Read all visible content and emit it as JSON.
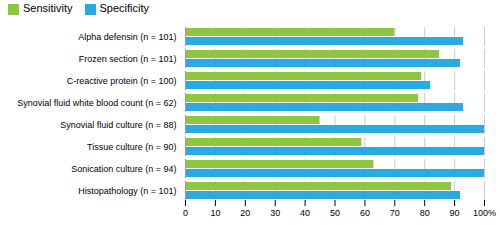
{
  "chart_data": {
    "type": "bar",
    "orientation": "horizontal",
    "categories": [
      "Alpha defensin (n = 101)",
      "Frozen section (n = 101)",
      "C-reactive protein (n = 100)",
      "Synovial fluid white blood count (n = 62)",
      "Synovial fluid culture (n = 88)",
      "Tissue culture (n = 90)",
      "Sonication culture (n = 94)",
      "Histopathology (n = 101)"
    ],
    "series": [
      {
        "name": "Sensitivity",
        "color": "#8dc63f",
        "values": [
          70,
          85,
          79,
          78,
          45,
          59,
          63,
          89
        ]
      },
      {
        "name": "Specificity",
        "color": "#29abe2",
        "values": [
          93,
          92,
          82,
          93,
          100,
          100,
          100,
          92
        ]
      }
    ],
    "xlim": [
      0,
      100
    ],
    "xticks": [
      0,
      10,
      20,
      30,
      40,
      50,
      60,
      70,
      80,
      90,
      {
        "value": 100,
        "label": "100%"
      }
    ],
    "grid": true,
    "legend": "upper left"
  }
}
